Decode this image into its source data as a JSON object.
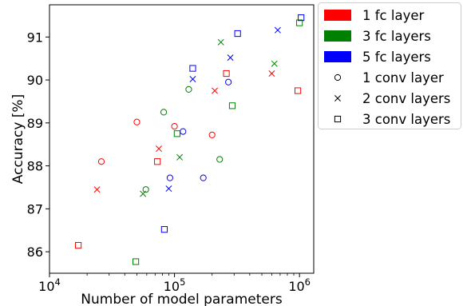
{
  "chart_data": {
    "type": "scatter",
    "title": "",
    "xlabel": "Number of model parameters",
    "ylabel": "Accuracy [%]",
    "xscale": "log",
    "xlim": [
      10000,
      1300000
    ],
    "ylim": [
      85.5,
      91.75
    ],
    "grid": false,
    "legend_position": "outside-right",
    "x_ticks": [
      {
        "value": 10000,
        "base": "10",
        "exp": "4"
      },
      {
        "value": 100000,
        "base": "10",
        "exp": "5"
      },
      {
        "value": 1000000,
        "base": "10",
        "exp": "6"
      }
    ],
    "y_ticks": [
      {
        "value": 86,
        "label": "86"
      },
      {
        "value": 87,
        "label": "87"
      },
      {
        "value": 88,
        "label": "88"
      },
      {
        "value": 89,
        "label": "89"
      },
      {
        "value": 90,
        "label": "90"
      },
      {
        "value": 91,
        "label": "91"
      }
    ],
    "legend": {
      "fc": [
        {
          "label": "1 fc layer",
          "color": "#ff0000"
        },
        {
          "label": "3 fc layers",
          "color": "#008000"
        },
        {
          "label": "5 fc layers",
          "color": "#0000ff"
        }
      ],
      "conv": [
        {
          "label": "1 conv layer",
          "marker": "circle"
        },
        {
          "label": "2 conv layers",
          "marker": "x"
        },
        {
          "label": "3 conv layers",
          "marker": "square"
        }
      ]
    },
    "series": [
      {
        "fc_layers": 1,
        "conv_layers": 1,
        "color": "#ff0000",
        "marker": "circle",
        "points": [
          [
            26000,
            88.1
          ],
          [
            50000,
            89.02
          ],
          [
            100000,
            88.92
          ],
          [
            200000,
            88.72
          ]
        ]
      },
      {
        "fc_layers": 1,
        "conv_layers": 2,
        "color": "#ff0000",
        "marker": "x",
        "points": [
          [
            24000,
            87.45
          ],
          [
            75000,
            88.4
          ],
          [
            210000,
            89.75
          ],
          [
            600000,
            90.15
          ]
        ]
      },
      {
        "fc_layers": 1,
        "conv_layers": 3,
        "color": "#ff0000",
        "marker": "square",
        "points": [
          [
            17000,
            86.15
          ],
          [
            73000,
            88.1
          ],
          [
            260000,
            90.15
          ],
          [
            970000,
            89.75
          ]
        ]
      },
      {
        "fc_layers": 3,
        "conv_layers": 1,
        "color": "#008000",
        "marker": "circle",
        "points": [
          [
            59000,
            87.45
          ],
          [
            82000,
            89.25
          ],
          [
            130000,
            89.78
          ],
          [
            230000,
            88.15
          ]
        ]
      },
      {
        "fc_layers": 3,
        "conv_layers": 2,
        "color": "#008000",
        "marker": "x",
        "points": [
          [
            56000,
            87.35
          ],
          [
            110000,
            88.2
          ],
          [
            235000,
            90.88
          ],
          [
            630000,
            90.38
          ]
        ]
      },
      {
        "fc_layers": 3,
        "conv_layers": 3,
        "color": "#008000",
        "marker": "square",
        "points": [
          [
            49000,
            85.77
          ],
          [
            105000,
            88.75
          ],
          [
            290000,
            89.4
          ],
          [
            1000000,
            91.33
          ]
        ]
      },
      {
        "fc_layers": 5,
        "conv_layers": 1,
        "color": "#0000ff",
        "marker": "circle",
        "points": [
          [
            92000,
            87.72
          ],
          [
            117000,
            88.8
          ],
          [
            170000,
            87.72
          ],
          [
            270000,
            89.95
          ]
        ]
      },
      {
        "fc_layers": 5,
        "conv_layers": 2,
        "color": "#0000ff",
        "marker": "x",
        "points": [
          [
            90000,
            87.47
          ],
          [
            140000,
            90.02
          ],
          [
            280000,
            90.52
          ],
          [
            670000,
            91.16
          ]
        ]
      },
      {
        "fc_layers": 5,
        "conv_layers": 3,
        "color": "#0000ff",
        "marker": "square",
        "points": [
          [
            83000,
            86.52
          ],
          [
            140000,
            90.27
          ],
          [
            320000,
            91.08
          ],
          [
            1030000,
            91.45
          ]
        ]
      }
    ]
  }
}
